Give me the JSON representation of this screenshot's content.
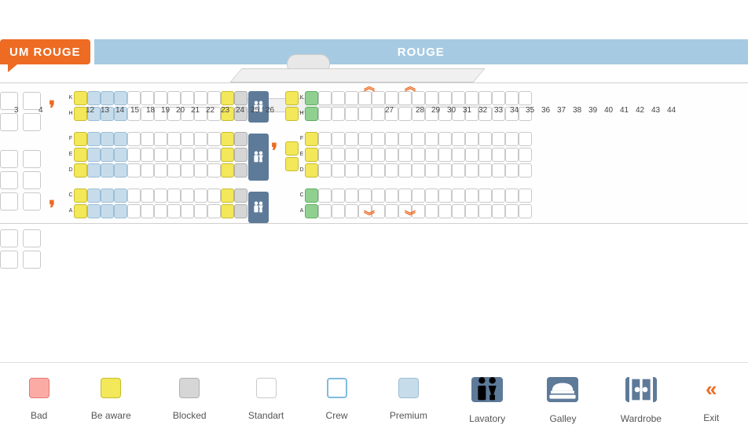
{
  "header": {
    "left_label": "UM ROUGE",
    "right_label": "ROUGE",
    "left_bg": "#ed6b23",
    "right_bg": "#a6cae2"
  },
  "seat_colors": {
    "bad": "#fcaaa4",
    "aware": "#f3e75a",
    "blocked": "#d6d6d6",
    "standard": "#ffffff",
    "crew_border": "#7fbce0",
    "premium": "#c7dcea",
    "good": "#8fd08f",
    "lavatory": "#5e7a99",
    "galley": "#5e7a99",
    "wardrobe": "#5e7a99",
    "exit": "#ed6b23"
  },
  "row_letters": {
    "top": [
      "H",
      "K"
    ],
    "mid": [
      "D",
      "E",
      "F"
    ],
    "bot": [
      "A",
      "C"
    ]
  },
  "first_rows": [
    3,
    4
  ],
  "sections": [
    {
      "rows": [
        12,
        13,
        14,
        15
      ],
      "top": [
        "aware premium premium premium",
        "aware premium premium premium"
      ],
      "mid": [
        "aware premium premium premium",
        "aware premium premium premium",
        "aware premium premium premium"
      ],
      "bot": [
        "aware premium premium premium",
        "aware premium premium premium"
      ]
    },
    {
      "rows": [
        18,
        19,
        20,
        21,
        22,
        23,
        24,
        25,
        26
      ],
      "top": [
        "std",
        "std",
        "std",
        "std",
        "std",
        "std",
        "std",
        "aware",
        "blocked"
      ],
      "mid": [
        "std",
        "std",
        "std",
        "std",
        "std",
        "std",
        "std",
        "aware",
        "blocked"
      ],
      "bot": [
        "std",
        "std",
        "std",
        "std",
        "std",
        "std",
        "std",
        "aware",
        "blocked"
      ]
    }
  ],
  "section_after_lav": {
    "rows": [
      27,
      28,
      29,
      30,
      31,
      32,
      33,
      34,
      35,
      36,
      37,
      38,
      39,
      40,
      41,
      42,
      43,
      44
    ],
    "top_special": [
      "aware",
      "good"
    ],
    "mid_special": [
      "aware",
      "good"
    ],
    "bot_special": [
      "aware",
      "good"
    ]
  },
  "row_numbers_displayed": [
    3,
    4,
    12,
    13,
    14,
    15,
    18,
    19,
    20,
    21,
    22,
    23,
    24,
    25,
    26,
    27,
    28,
    29,
    30,
    31,
    32,
    33,
    34,
    35,
    36,
    37,
    38,
    39,
    40,
    41,
    42,
    43,
    44
  ],
  "row_label_27": "27",
  "legend": [
    {
      "key": "bad",
      "label": "Bad",
      "type": "seat"
    },
    {
      "key": "aware",
      "label": "Be aware",
      "type": "seat"
    },
    {
      "key": "blocked",
      "label": "Blocked",
      "type": "seat"
    },
    {
      "key": "standard",
      "label": "Standart",
      "type": "seat"
    },
    {
      "key": "crew",
      "label": "Crew",
      "type": "seat"
    },
    {
      "key": "premium",
      "label": "Premium",
      "type": "seat"
    },
    {
      "key": "lavatory",
      "label": "Lavatory",
      "type": "box",
      "icon": "lavatory"
    },
    {
      "key": "galley",
      "label": "Galley",
      "type": "box",
      "icon": "galley"
    },
    {
      "key": "wardrobe",
      "label": "Wardrobe",
      "type": "box",
      "icon": "wardrobe"
    },
    {
      "key": "exit",
      "label": "Exit",
      "type": "exit"
    }
  ]
}
